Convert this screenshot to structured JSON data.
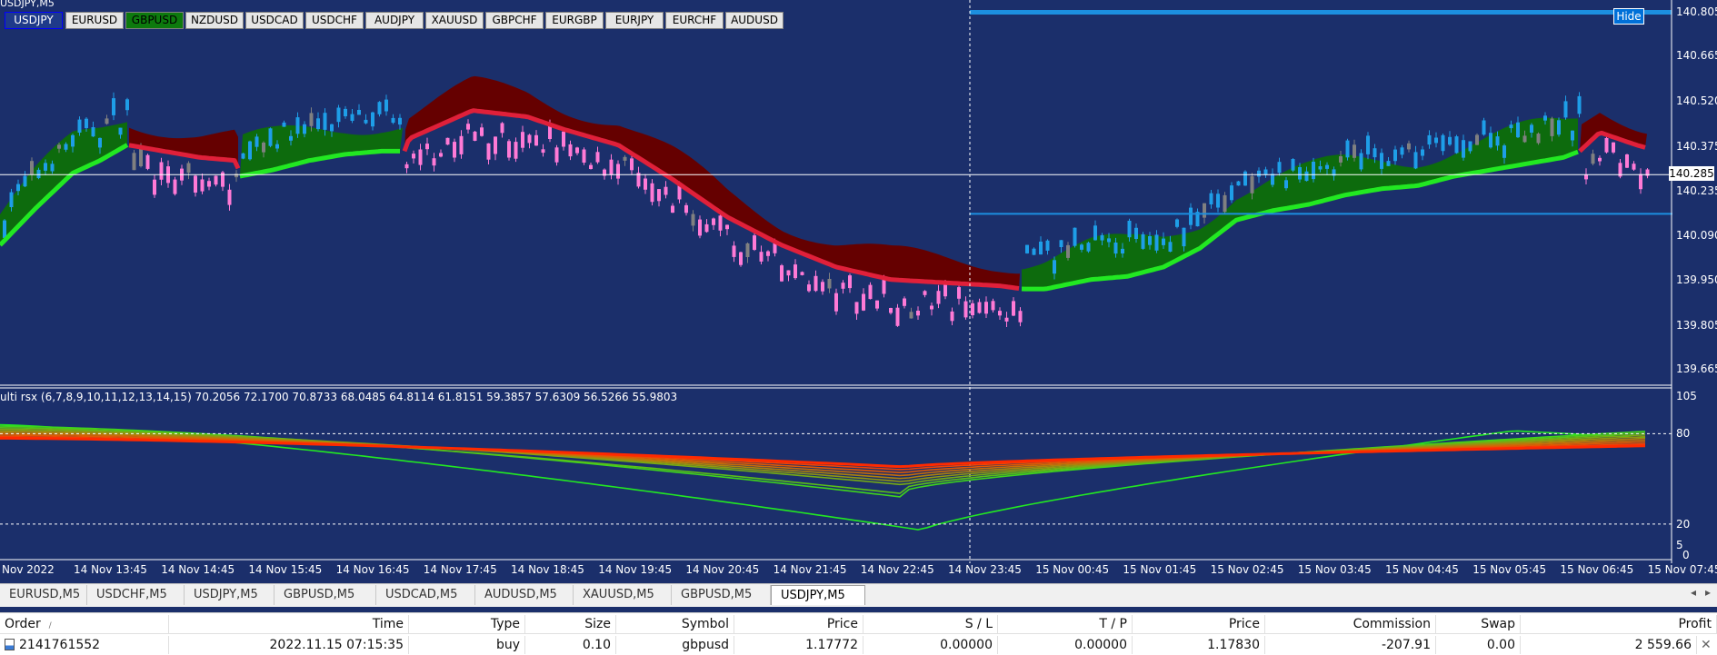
{
  "chart": {
    "title": "USDJPY,M5",
    "hide_label": "Hide",
    "indicator_label": "ulti rsx (6,7,8,9,10,11,12,13,14,15) 70.2056 72.1700 70.8733 68.0485 64.8114 61.8151 59.3857 57.6309 56.5266 55.9803",
    "symbols": [
      "USDJPY",
      "EURUSD",
      "GBPUSD",
      "NZDUSD",
      "USDCAD",
      "USDCHF",
      "AUDJPY",
      "XAUUSD",
      "GBPCHF",
      "EURGBP",
      "EURJPY",
      "EURCHF",
      "AUDUSD"
    ],
    "active_symbol": "USDJPY",
    "price_ticks": [
      "140.805",
      "140.665",
      "140.520",
      "140.375",
      "140.235",
      "140.090",
      "139.950",
      "139.805",
      "139.665"
    ],
    "current_price": "140.285",
    "rsx_ticks": [
      "105",
      "80",
      "20",
      "5",
      "0"
    ],
    "time_ticks": [
      "Nov 2022",
      "14 Nov 13:45",
      "14 Nov 14:45",
      "14 Nov 15:45",
      "14 Nov 16:45",
      "14 Nov 17:45",
      "14 Nov 18:45",
      "14 Nov 19:45",
      "14 Nov 20:45",
      "14 Nov 21:45",
      "14 Nov 22:45",
      "14 Nov 23:45",
      "15 Nov 00:45",
      "15 Nov 01:45",
      "15 Nov 02:45",
      "15 Nov 03:45",
      "15 Nov 04:45",
      "15 Nov 05:45",
      "15 Nov 06:45",
      "15 Nov 07:45"
    ],
    "colors": {
      "background": "#1b2f6b",
      "bull": "#1e9ee8",
      "bear": "#ff7ad6",
      "neutral": "#808080",
      "ma_up": "#22e822",
      "ma_down": "#e0203a",
      "fill_up": "#0d6b0d",
      "fill_down": "#650000"
    }
  },
  "tabs": {
    "items": [
      "EURUSD,M5",
      "USDCHF,M5",
      "USDJPY,M5",
      "GBPUSD,M5",
      "USDCAD,M5",
      "AUDUSD,M5",
      "XAUUSD,M5",
      "GBPUSD,M5",
      "USDJPY,M5"
    ],
    "active_index": 8,
    "prev_arrow": "◂",
    "next_arrow": "▸"
  },
  "orders": {
    "columns": [
      "Order",
      "Time",
      "Type",
      "Size",
      "Symbol",
      "Price",
      "S / L",
      "T / P",
      "Price",
      "Commission",
      "Swap",
      "Profit"
    ],
    "sort_indicator": "/",
    "rows": [
      {
        "order": "2141761552",
        "time": "2022.11.15 07:15:35",
        "type": "buy",
        "size": "0.10",
        "symbol": "gbpusd",
        "open_price": "1.17772",
        "sl": "0.00000",
        "tp": "0.00000",
        "price": "1.17830",
        "commission": "-207.91",
        "swap": "0.00",
        "profit": "2 559.66"
      }
    ],
    "close_glyph": "✕"
  }
}
